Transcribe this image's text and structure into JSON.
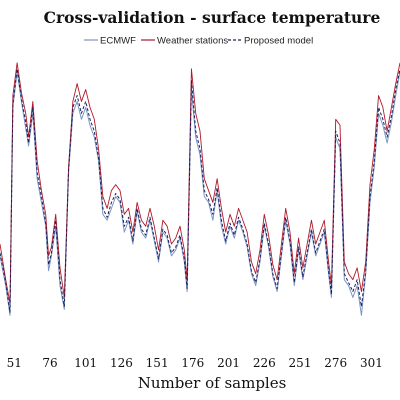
{
  "chart_data": {
    "type": "line",
    "title": "Cross-validation - surface temperature",
    "xlabel": "Number of samples",
    "ylabel": "",
    "x_ticks": [
      51,
      76,
      101,
      126,
      151,
      176,
      201,
      226,
      251,
      276,
      301
    ],
    "xlim": [
      41,
      321
    ],
    "ylim": [
      0,
      100
    ],
    "legend_position": "top",
    "grid": false,
    "segments": {
      "x": [
        41,
        45,
        48,
        50,
        53,
        56,
        59,
        61,
        64,
        67,
        70,
        73,
        75,
        77,
        80,
        83,
        86,
        89,
        92,
        95,
        98,
        101,
        104,
        107,
        110,
        113,
        116,
        119,
        122,
        125,
        128,
        131,
        134,
        137,
        140,
        143,
        146,
        149,
        152,
        155,
        158,
        161,
        164,
        167,
        170,
        172,
        175,
        178,
        181,
        184,
        187,
        190,
        193,
        196,
        199,
        202,
        205,
        208,
        211,
        214,
        217,
        220,
        223,
        226,
        229,
        232,
        235,
        238,
        241,
        244,
        247,
        250,
        253,
        256,
        259,
        262,
        265,
        268,
        271,
        273,
        276,
        279,
        282,
        285,
        288,
        291,
        294,
        297,
        300,
        303,
        306,
        309,
        312,
        315,
        318,
        321
      ],
      "ecmwf": [
        30,
        20,
        10,
        80,
        92,
        82,
        73,
        67,
        78,
        56,
        48,
        40,
        25,
        30,
        40,
        20,
        12,
        58,
        78,
        82,
        76,
        80,
        74,
        70,
        62,
        44,
        42,
        46,
        50,
        48,
        38,
        42,
        34,
        45,
        38,
        36,
        42,
        35,
        28,
        38,
        36,
        30,
        32,
        36,
        28,
        18,
        86,
        70,
        64,
        50,
        48,
        42,
        52,
        40,
        34,
        40,
        36,
        42,
        38,
        33,
        24,
        20,
        28,
        40,
        33,
        23,
        18,
        30,
        42,
        34,
        20,
        32,
        22,
        30,
        38,
        30,
        34,
        38,
        24,
        16,
        70,
        66,
        22,
        20,
        16,
        20,
        10,
        24,
        48,
        60,
        78,
        74,
        68,
        75,
        84,
        92
      ],
      "stations": [
        34,
        22,
        14,
        84,
        95,
        85,
        78,
        70,
        82,
        62,
        52,
        44,
        30,
        33,
        44,
        26,
        16,
        60,
        82,
        88,
        82,
        86,
        80,
        76,
        66,
        50,
        46,
        52,
        54,
        52,
        44,
        46,
        38,
        48,
        42,
        40,
        46,
        40,
        32,
        42,
        40,
        34,
        36,
        40,
        32,
        22,
        93,
        78,
        72,
        56,
        52,
        48,
        56,
        46,
        38,
        44,
        40,
        46,
        42,
        38,
        28,
        24,
        32,
        44,
        37,
        27,
        22,
        34,
        46,
        38,
        24,
        36,
        26,
        34,
        42,
        34,
        38,
        42,
        28,
        20,
        76,
        74,
        28,
        24,
        22,
        26,
        18,
        28,
        54,
        66,
        84,
        80,
        72,
        80,
        88,
        95
      ],
      "proposed": [
        31,
        21,
        11,
        81,
        93,
        83,
        75,
        68,
        80,
        58,
        50,
        41,
        27,
        31,
        42,
        22,
        13,
        59,
        80,
        84,
        78,
        82,
        76,
        72,
        63,
        46,
        43,
        48,
        51,
        49,
        40,
        43,
        35,
        46,
        39,
        37,
        43,
        36,
        29,
        39,
        37,
        31,
        33,
        37,
        29,
        19,
        89,
        72,
        66,
        52,
        49,
        44,
        53,
        42,
        35,
        41,
        37,
        43,
        39,
        34,
        25,
        21,
        29,
        41,
        34,
        24,
        19,
        31,
        43,
        35,
        21,
        33,
        23,
        31,
        39,
        31,
        35,
        39,
        25,
        17,
        72,
        68,
        24,
        21,
        18,
        22,
        13,
        25,
        50,
        62,
        80,
        76,
        70,
        77,
        86,
        93
      ]
    },
    "series": [
      {
        "name": "ECMWF",
        "color": "#7b96c4",
        "dash": "solid"
      },
      {
        "name": "Weather stations",
        "color": "#b0192b",
        "dash": "solid"
      },
      {
        "name": "Proposed model",
        "color": "#1a1f5c",
        "dash": "dashed"
      }
    ]
  }
}
